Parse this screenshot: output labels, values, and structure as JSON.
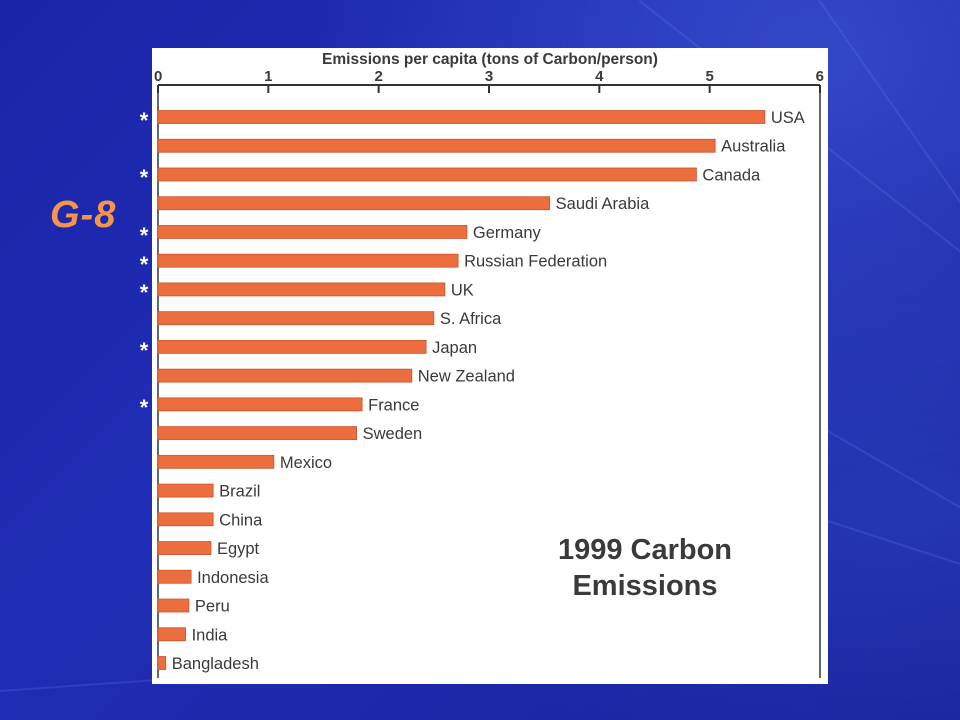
{
  "slide": {
    "group_label": "G-8",
    "marker_symbol": "*"
  },
  "colors": {
    "bar": "#ec6e3f",
    "bar_stroke": "#c9552c",
    "axis": "#333333",
    "label": "#3a3a3a",
    "title": "#3a3a3a",
    "group_label": "#f7944a"
  },
  "chart_data": {
    "type": "bar",
    "orientation": "horizontal",
    "title": "1999 Carbon Emissions",
    "title_lines": [
      "1999 Carbon",
      "Emissions"
    ],
    "xlabel": "Emissions per capita (tons of Carbon/person)",
    "ylabel": "",
    "xlim": [
      0,
      6
    ],
    "x_ticks": [
      0,
      1,
      2,
      3,
      4,
      5,
      6
    ],
    "x_axis_position": "top",
    "grid": false,
    "legend": "none",
    "categories": [
      "USA",
      "Australia",
      "Canada",
      "Saudi Arabia",
      "Germany",
      "Russian Federation",
      "UK",
      "S. Africa",
      "Japan",
      "New Zealand",
      "France",
      "Sweden",
      "Mexico",
      "Brazil",
      "China",
      "Egypt",
      "Indonesia",
      "Peru",
      "India",
      "Bangladesh"
    ],
    "values": [
      5.5,
      5.05,
      4.88,
      3.55,
      2.8,
      2.72,
      2.6,
      2.5,
      2.43,
      2.3,
      1.85,
      1.8,
      1.05,
      0.5,
      0.5,
      0.48,
      0.3,
      0.28,
      0.25,
      0.07
    ],
    "g8_marked": [
      "USA",
      "Canada",
      "Germany",
      "Russian Federation",
      "UK",
      "Japan",
      "France"
    ]
  }
}
